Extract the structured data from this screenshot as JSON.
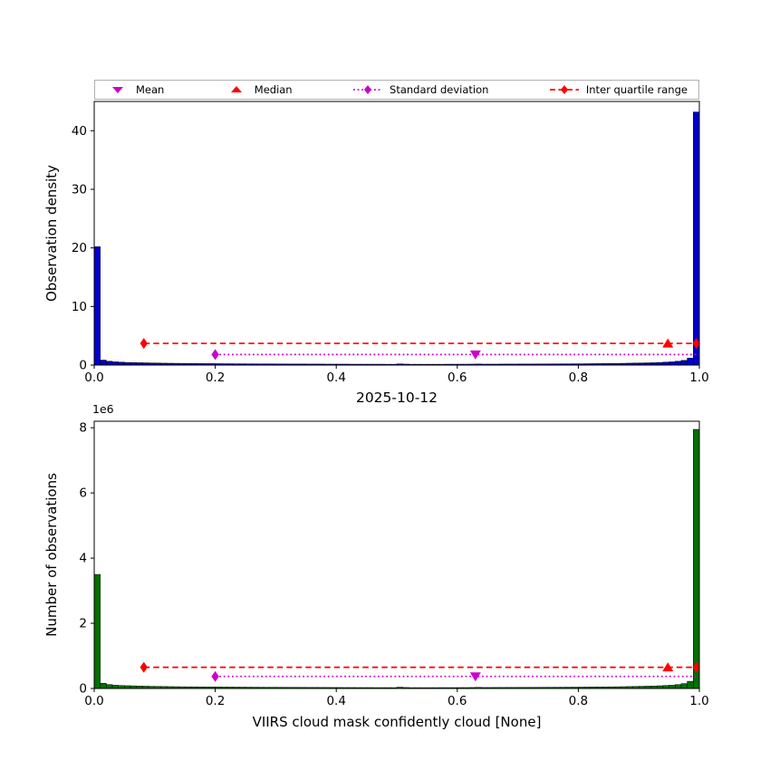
{
  "figure": {
    "title": "2025-10-12",
    "xlabel": "VIIRS cloud mask confidently cloud [None]",
    "background": "#ffffff",
    "legend": {
      "items": [
        {
          "label": "Mean",
          "marker": "triangle-down",
          "color": "#cc00cc",
          "linestyle": "none"
        },
        {
          "label": "Median",
          "marker": "triangle-up",
          "color": "#ff0000",
          "linestyle": "none"
        },
        {
          "label": "Standard deviation",
          "marker": "thin-diamond",
          "color": "#cc00cc",
          "linestyle": "dotted"
        },
        {
          "label": "Inter quartile range",
          "marker": "thin-diamond",
          "color": "#ff0000",
          "linestyle": "dashed"
        }
      ]
    }
  },
  "chart_data": [
    {
      "type": "bar",
      "subtype": "histogram",
      "title": "",
      "ylabel": "Observation density",
      "bar_color": "#0000cc",
      "edge_color": "#000000",
      "xlim": [
        0.0,
        1.0
      ],
      "ylim": [
        0,
        45
      ],
      "grid": false,
      "xticks": {
        "values": [
          0.0,
          0.2,
          0.4,
          0.6,
          0.8,
          1.0
        ],
        "labels": [
          "0.0",
          "0.2",
          "0.4",
          "0.6",
          "0.8",
          "1.0"
        ]
      },
      "yticks": {
        "values": [
          0,
          10,
          20,
          30,
          40
        ],
        "labels": [
          "0",
          "10",
          "20",
          "30",
          "40"
        ],
        "offset_label": ""
      },
      "bins": {
        "start": 0.0,
        "width": 0.01
      },
      "values": [
        20.2,
        0.85,
        0.65,
        0.55,
        0.5,
        0.45,
        0.42,
        0.4,
        0.38,
        0.36,
        0.34,
        0.32,
        0.31,
        0.3,
        0.29,
        0.28,
        0.27,
        0.26,
        0.25,
        0.25,
        0.24,
        0.23,
        0.23,
        0.22,
        0.22,
        0.21,
        0.21,
        0.2,
        0.2,
        0.2,
        0.19,
        0.19,
        0.18,
        0.18,
        0.18,
        0.17,
        0.17,
        0.17,
        0.16,
        0.16,
        0.16,
        0.16,
        0.15,
        0.15,
        0.15,
        0.15,
        0.15,
        0.15,
        0.14,
        0.14,
        0.2,
        0.16,
        0.14,
        0.14,
        0.14,
        0.14,
        0.14,
        0.14,
        0.15,
        0.15,
        0.15,
        0.15,
        0.16,
        0.18,
        0.16,
        0.16,
        0.16,
        0.17,
        0.17,
        0.17,
        0.18,
        0.18,
        0.18,
        0.19,
        0.19,
        0.2,
        0.2,
        0.21,
        0.21,
        0.22,
        0.22,
        0.23,
        0.24,
        0.25,
        0.26,
        0.27,
        0.28,
        0.3,
        0.32,
        0.34,
        0.36,
        0.38,
        0.4,
        0.45,
        0.5,
        0.55,
        0.65,
        0.8,
        1.2,
        43.2
      ],
      "stats": {
        "mean": {
          "x": 0.63,
          "y": 1.8,
          "color": "#cc00cc"
        },
        "median": {
          "x": 0.948,
          "y": 3.7,
          "color": "#ff0000"
        },
        "std_line": {
          "x1": 0.2,
          "x2": 1.0,
          "y": 1.8,
          "color": "#cc00cc"
        },
        "iqr_line": {
          "x1": 0.082,
          "x2": 0.995,
          "y": 3.7,
          "color": "#ff0000"
        }
      }
    },
    {
      "type": "bar",
      "subtype": "histogram",
      "title": "2025-10-12",
      "ylabel": "Number of observations",
      "bar_color": "#007000",
      "edge_color": "#000000",
      "xlim": [
        0.0,
        1.0
      ],
      "ylim": [
        0,
        8.2
      ],
      "grid": false,
      "unit_scale": "1e6",
      "xticks": {
        "values": [
          0.0,
          0.2,
          0.4,
          0.6,
          0.8,
          1.0
        ],
        "labels": [
          "0.0",
          "0.2",
          "0.4",
          "0.6",
          "0.8",
          "1.0"
        ]
      },
      "yticks": {
        "values": [
          0,
          2,
          4,
          6,
          8
        ],
        "labels": [
          "0",
          "2",
          "4",
          "6",
          "8"
        ],
        "offset_label": "1e6"
      },
      "bins": {
        "start": 0.0,
        "width": 0.01
      },
      "values": [
        3.5,
        0.16,
        0.12,
        0.1,
        0.09,
        0.085,
        0.08,
        0.075,
        0.07,
        0.066,
        0.063,
        0.06,
        0.057,
        0.055,
        0.053,
        0.051,
        0.05,
        0.048,
        0.047,
        0.046,
        0.045,
        0.044,
        0.043,
        0.042,
        0.041,
        0.04,
        0.039,
        0.038,
        0.037,
        0.037,
        0.036,
        0.035,
        0.034,
        0.034,
        0.033,
        0.032,
        0.032,
        0.031,
        0.031,
        0.03,
        0.03,
        0.029,
        0.029,
        0.028,
        0.028,
        0.028,
        0.027,
        0.027,
        0.027,
        0.026,
        0.04,
        0.03,
        0.026,
        0.026,
        0.026,
        0.026,
        0.026,
        0.027,
        0.027,
        0.027,
        0.028,
        0.028,
        0.03,
        0.034,
        0.03,
        0.03,
        0.031,
        0.031,
        0.032,
        0.032,
        0.033,
        0.033,
        0.034,
        0.035,
        0.036,
        0.037,
        0.038,
        0.039,
        0.04,
        0.041,
        0.042,
        0.043,
        0.045,
        0.046,
        0.048,
        0.05,
        0.052,
        0.055,
        0.059,
        0.063,
        0.067,
        0.071,
        0.075,
        0.083,
        0.092,
        0.1,
        0.12,
        0.15,
        0.22,
        7.95
      ],
      "stats": {
        "mean": {
          "x": 0.63,
          "y": 0.37,
          "color": "#cc00cc"
        },
        "median": {
          "x": 0.948,
          "y": 0.65,
          "color": "#ff0000"
        },
        "std_line": {
          "x1": 0.2,
          "x2": 1.0,
          "y": 0.37,
          "color": "#cc00cc"
        },
        "iqr_line": {
          "x1": 0.082,
          "x2": 0.995,
          "y": 0.65,
          "color": "#ff0000"
        }
      }
    }
  ]
}
